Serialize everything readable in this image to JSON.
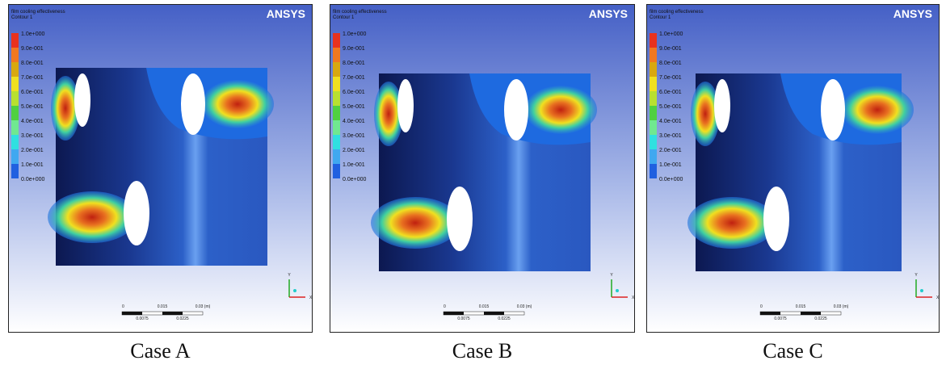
{
  "panels": [
    {
      "caption": "Case A",
      "title": "film cooling effectiveness",
      "subtitle": "Contour 1",
      "logo": "ANSYS",
      "legend_labels": [
        "1.0e+000",
        "9.0e-001",
        "8.0e-001",
        "7.0e-001",
        "6.0e-001",
        "5.0e-001",
        "4.0e-001",
        "3.0e-001",
        "2.0e-001",
        "1.0e-001",
        "0.0e+000"
      ],
      "scale_top": [
        "0",
        "0.015",
        "0.03 (m)"
      ],
      "scale_bottom": [
        "0.0075",
        "0.0225"
      ],
      "axis_labels": [
        "Y",
        "X"
      ]
    },
    {
      "caption": "Case B",
      "title": "film cooling effectiveness",
      "subtitle": "Contour 1",
      "logo": "ANSYS",
      "legend_labels": [
        "1.0e+000",
        "9.0e-001",
        "8.0e-001",
        "7.0e-001",
        "6.0e-001",
        "5.0e-001",
        "4.0e-001",
        "3.0e-001",
        "2.0e-001",
        "1.0e-001",
        "0.0e+000"
      ],
      "scale_top": [
        "0",
        "0.015",
        "0.03 (m)"
      ],
      "scale_bottom": [
        "0.0075",
        "0.0225"
      ],
      "axis_labels": [
        "Y",
        "X"
      ]
    },
    {
      "caption": "Case C",
      "title": "film cooling effectiveness",
      "subtitle": "Contour 1",
      "logo": "ANSYS",
      "legend_labels": [
        "1.0e+000",
        "9.0e-001",
        "8.0e-001",
        "7.0e-001",
        "6.0e-001",
        "5.0e-001",
        "4.0e-001",
        "3.0e-001",
        "2.0e-001",
        "1.0e-001",
        "0.0e+000"
      ],
      "scale_top": [
        "0",
        "0.015",
        "0.03 (m)"
      ],
      "scale_bottom": [
        "0.0075",
        "0.0225"
      ],
      "axis_labels": [
        "Y",
        "X"
      ]
    }
  ]
}
